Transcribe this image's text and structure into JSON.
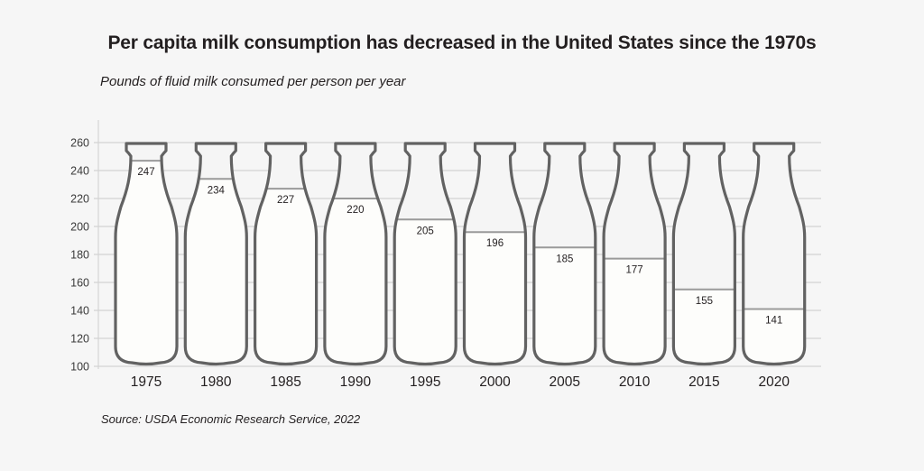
{
  "chart_data": {
    "type": "bar",
    "mark_style": "milk-bottle-fill",
    "title": "Per capita milk consumption has decreased in the United States since the 1970s",
    "subtitle": "Pounds of fluid milk consumed per person per year",
    "source": "Source: USDA Economic Research Service, 2022",
    "xlabel": "",
    "ylabel": "",
    "categories": [
      "1975",
      "1980",
      "1985",
      "1990",
      "1995",
      "2000",
      "2005",
      "2010",
      "2015",
      "2020"
    ],
    "values": [
      247,
      234,
      227,
      220,
      205,
      196,
      185,
      177,
      155,
      141
    ],
    "ylim": [
      100,
      260
    ],
    "yticks": [
      100,
      120,
      140,
      160,
      180,
      200,
      220,
      240,
      260
    ],
    "grid": true,
    "legend": "none",
    "colors": {
      "background": "#f6f6f6",
      "grid": "#d4d4d4",
      "bottle_outline": "#626262",
      "milk_fill": "#fdfdfb",
      "milk_line": "#9a9a9a",
      "text": "#231f20"
    }
  }
}
